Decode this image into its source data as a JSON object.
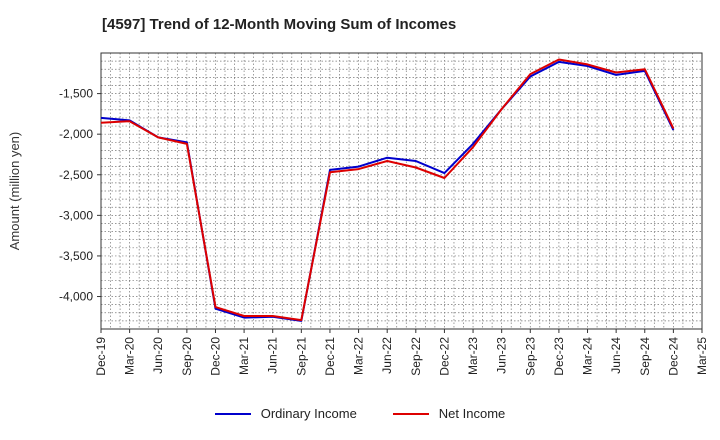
{
  "chart_data": {
    "type": "line",
    "title": "[4597]  Trend of 12-Month Moving Sum of Incomes",
    "xlabel": "",
    "ylabel": "Amount (million yen)",
    "ylim": [
      -4400,
      -1000
    ],
    "yticks": [
      -1500,
      -2000,
      -2500,
      -3000,
      -3500,
      -4000
    ],
    "ytick_labels": [
      "-1,500",
      "-2,000",
      "-2,500",
      "-3,000",
      "-3,500",
      "-4,000"
    ],
    "categories": [
      "Dec-19",
      "Mar-20",
      "Jun-20",
      "Sep-20",
      "Dec-20",
      "Mar-21",
      "Jun-21",
      "Sep-21",
      "Dec-21",
      "Mar-22",
      "Jun-22",
      "Sep-22",
      "Dec-22",
      "Mar-23",
      "Jun-23",
      "Sep-23",
      "Dec-23",
      "Mar-24",
      "Jun-24",
      "Sep-24",
      "Dec-24",
      "Mar-25"
    ],
    "grid": true,
    "legend_position": "bottom",
    "series": [
      {
        "name": "Ordinary Income",
        "color": "#0000cc",
        "values": [
          -1800,
          -1830,
          -2040,
          -2100,
          -4150,
          -4260,
          -4250,
          -4300,
          -2440,
          -2400,
          -2290,
          -2330,
          -2480,
          -2120,
          -1690,
          -1290,
          -1110,
          -1160,
          -1270,
          -1220,
          -1950,
          null
        ]
      },
      {
        "name": "Net Income",
        "color": "#dd0000",
        "values": [
          -1860,
          -1840,
          -2040,
          -2120,
          -4130,
          -4240,
          -4240,
          -4290,
          -2470,
          -2430,
          -2330,
          -2410,
          -2540,
          -2160,
          -1690,
          -1260,
          -1080,
          -1140,
          -1240,
          -1200,
          -1930,
          null
        ]
      }
    ]
  }
}
